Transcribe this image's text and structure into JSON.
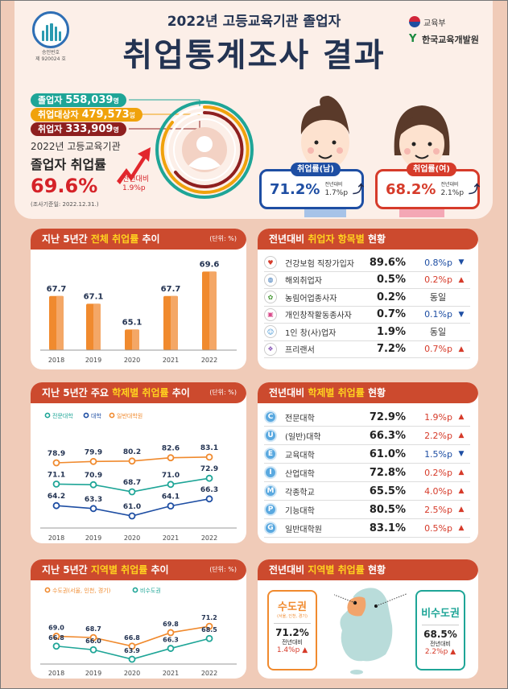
{
  "header": {
    "logo_caption_line1": "승인번호",
    "logo_caption_line2": "제 920024 호",
    "subtitle": "2022년 고등교육기관 졸업자",
    "title": "취업통계조사 결과",
    "org1": "교육부",
    "org2": "한국교육개발원"
  },
  "summary": {
    "graduates_label": "졸업자",
    "graduates_value": "558,039",
    "graduates_unit": "명",
    "target_label": "취업대상자",
    "target_value": "479,573",
    "target_unit": "명",
    "employed_label": "취업자",
    "employed_value": "333,909",
    "employed_unit": "명",
    "rate_line1": "2022년 고등교육기관",
    "rate_line2": "졸업자 취업률",
    "rate_value": "69.6%",
    "rate_delta_label": "전년대비",
    "rate_delta_value": "1.9%p",
    "survey_date": "(조사기준일: 2022.12.31.)",
    "colors": {
      "graduates": "#1ea597",
      "target": "#f0a20c",
      "employed": "#8e1f1f"
    }
  },
  "gender": {
    "male_label": "취업률(남)",
    "male_value": "71.2%",
    "male_delta_label": "전년대비",
    "male_delta": "1.7%p",
    "male_arrow": "⤴",
    "female_label": "취업률(여)",
    "female_value": "68.2%",
    "female_delta_label": "전년대비",
    "female_delta": "2.1%p",
    "female_arrow": "⤴"
  },
  "panels": {
    "overall": {
      "title_a": "지난 5년간 ",
      "title_hl": "전체 취업률",
      "title_b": " 추이",
      "unit": "(단위: %)"
    },
    "items": {
      "title_a": "전년대비 ",
      "title_hl": "취업자 항목별",
      "title_b": " 현황"
    },
    "school_trend": {
      "title_a": "지난 5년간 주요 ",
      "title_hl": "학제별 취업률",
      "title_b": " 추이",
      "unit": "(단위: %)"
    },
    "school_status": {
      "title_a": "전년대비 ",
      "title_hl": "학제별 취업률",
      "title_b": " 현황"
    },
    "region_trend": {
      "title_a": "지난 5년간 ",
      "title_hl": "지역별 취업률",
      "title_b": " 추이",
      "unit": "(단위: %)"
    },
    "region_status": {
      "title_a": "전년대비 ",
      "title_hl": "지역별 취업률",
      "title_b": " 현황"
    }
  },
  "items_table": [
    {
      "icon": "♥",
      "name": "건강보험 직장가입자",
      "value": "89.6%",
      "delta": "0.8%p",
      "dir": "down"
    },
    {
      "icon": "◍",
      "name": "해외취업자",
      "value": "0.5%",
      "delta": "0.2%p",
      "dir": "up"
    },
    {
      "icon": "✿",
      "name": "농림어업종사자",
      "value": "0.2%",
      "delta": "동일",
      "dir": "same"
    },
    {
      "icon": "▣",
      "name": "개인창작활동종사자",
      "value": "0.7%",
      "delta": "0.1%p",
      "dir": "down"
    },
    {
      "icon": "☺",
      "name": "1인 창(사)업자",
      "value": "1.9%",
      "delta": "동일",
      "dir": "same"
    },
    {
      "icon": "❖",
      "name": "프리랜서",
      "value": "7.2%",
      "delta": "0.7%p",
      "dir": "up"
    }
  ],
  "school_table": [
    {
      "badge": "C",
      "name": "전문대학",
      "value": "72.9%",
      "delta": "1.9%p",
      "dir": "up"
    },
    {
      "badge": "U",
      "name": "(일반)대학",
      "value": "66.3%",
      "delta": "2.2%p",
      "dir": "up"
    },
    {
      "badge": "E",
      "name": "교육대학",
      "value": "61.0%",
      "delta": "1.5%p",
      "dir": "down"
    },
    {
      "badge": "I",
      "name": "산업대학",
      "value": "72.8%",
      "delta": "0.2%p",
      "dir": "up"
    },
    {
      "badge": "M",
      "name": "각종학교",
      "value": "65.5%",
      "delta": "4.0%p",
      "dir": "up"
    },
    {
      "badge": "P",
      "name": "기능대학",
      "value": "80.5%",
      "delta": "2.5%p",
      "dir": "up"
    },
    {
      "badge": "G",
      "name": "일반대학원",
      "value": "83.1%",
      "delta": "0.5%p",
      "dir": "up"
    }
  ],
  "region_status": {
    "capital_label": "수도권",
    "capital_sub": "(서울, 인천, 경기)",
    "capital_value": "71.2%",
    "capital_delta_label": "전년대비",
    "capital_delta": "1.4%p",
    "noncapital_label": "비수도권",
    "noncapital_value": "68.5%",
    "noncapital_delta_label": "전년대비",
    "noncapital_delta": "2.2%p"
  },
  "chart_data": [
    {
      "type": "bar",
      "title": "지난 5년간 전체 취업률 추이",
      "categories": [
        "2018",
        "2019",
        "2020",
        "2021",
        "2022"
      ],
      "values": [
        67.7,
        67.1,
        65.1,
        67.7,
        69.6
      ],
      "xlabel": "",
      "ylabel": "(단위: %)",
      "color": "#f08a2e"
    },
    {
      "type": "line",
      "title": "지난 5년간 주요 학제별 취업률 추이",
      "categories": [
        "2018",
        "2019",
        "2020",
        "2021",
        "2022"
      ],
      "series": [
        {
          "name": "전문대학",
          "values": [
            71.1,
            70.9,
            68.7,
            71.0,
            72.9
          ],
          "color": "#1ea597"
        },
        {
          "name": "대학",
          "values": [
            64.2,
            63.3,
            61.0,
            64.1,
            66.3
          ],
          "color": "#1e4ea3"
        },
        {
          "name": "일반대학원",
          "values": [
            78.9,
            79.9,
            80.2,
            82.6,
            83.1
          ],
          "color": "#f08a2e"
        }
      ],
      "ylabel": "(단위: %)",
      "legend_position": "top-left"
    },
    {
      "type": "line",
      "title": "지난 5년간 지역별 취업률 추이",
      "categories": [
        "2018",
        "2019",
        "2020",
        "2021",
        "2022"
      ],
      "series": [
        {
          "name": "수도권(서울, 인천, 경기)",
          "values": [
            69.0,
            68.7,
            66.8,
            69.8,
            71.2
          ],
          "color": "#f08a2e"
        },
        {
          "name": "비수도권",
          "values": [
            66.8,
            66.0,
            63.9,
            66.3,
            68.5
          ],
          "color": "#1ea597"
        }
      ],
      "ylabel": "(단위: %)",
      "legend_position": "top-left"
    }
  ]
}
